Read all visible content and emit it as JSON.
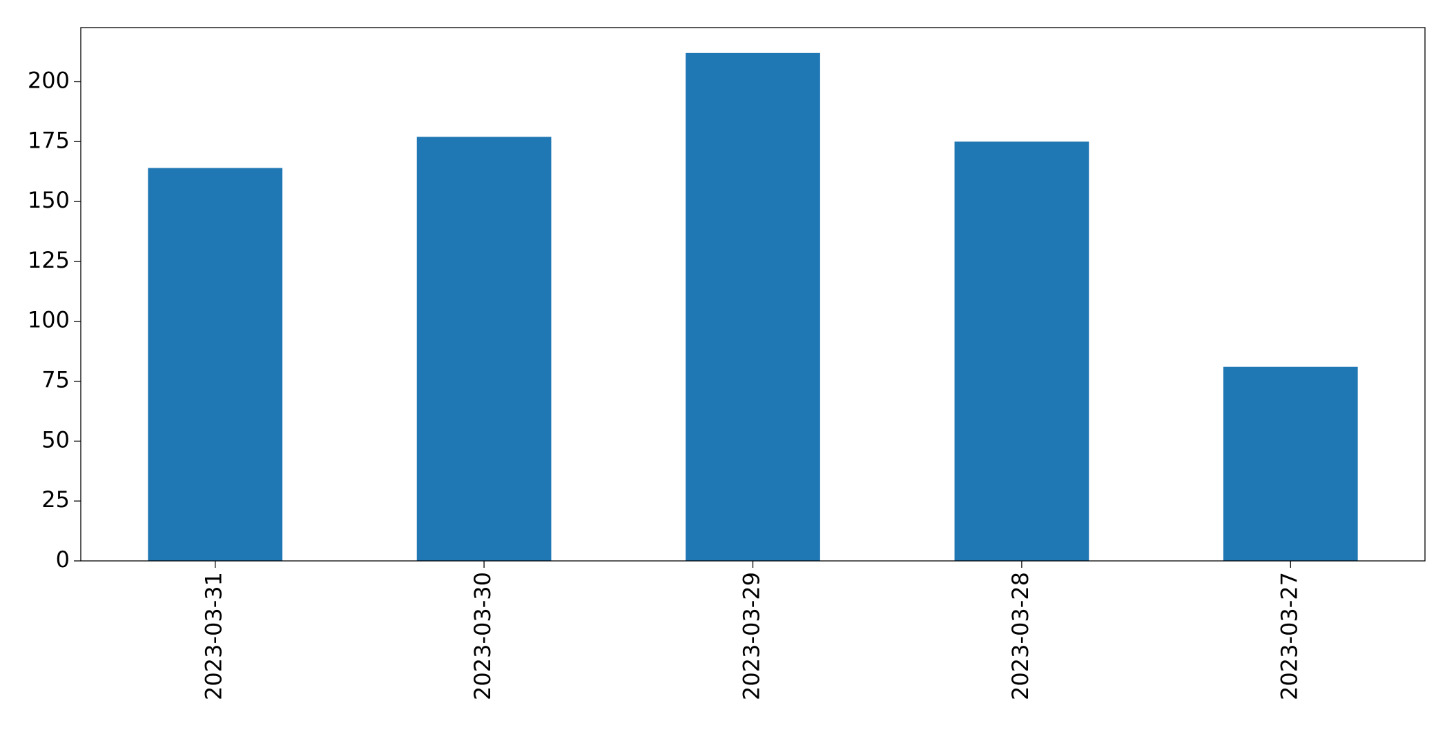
{
  "chart_data": {
    "type": "bar",
    "categories": [
      "2023-03-31",
      "2023-03-30",
      "2023-03-29",
      "2023-03-28",
      "2023-03-27"
    ],
    "values": [
      164,
      177,
      212,
      175,
      81
    ],
    "color": "#1f77b4",
    "ylim": [
      0,
      222.6
    ],
    "yticks": [
      0,
      25,
      50,
      75,
      100,
      125,
      150,
      175,
      200
    ],
    "grid": false
  }
}
